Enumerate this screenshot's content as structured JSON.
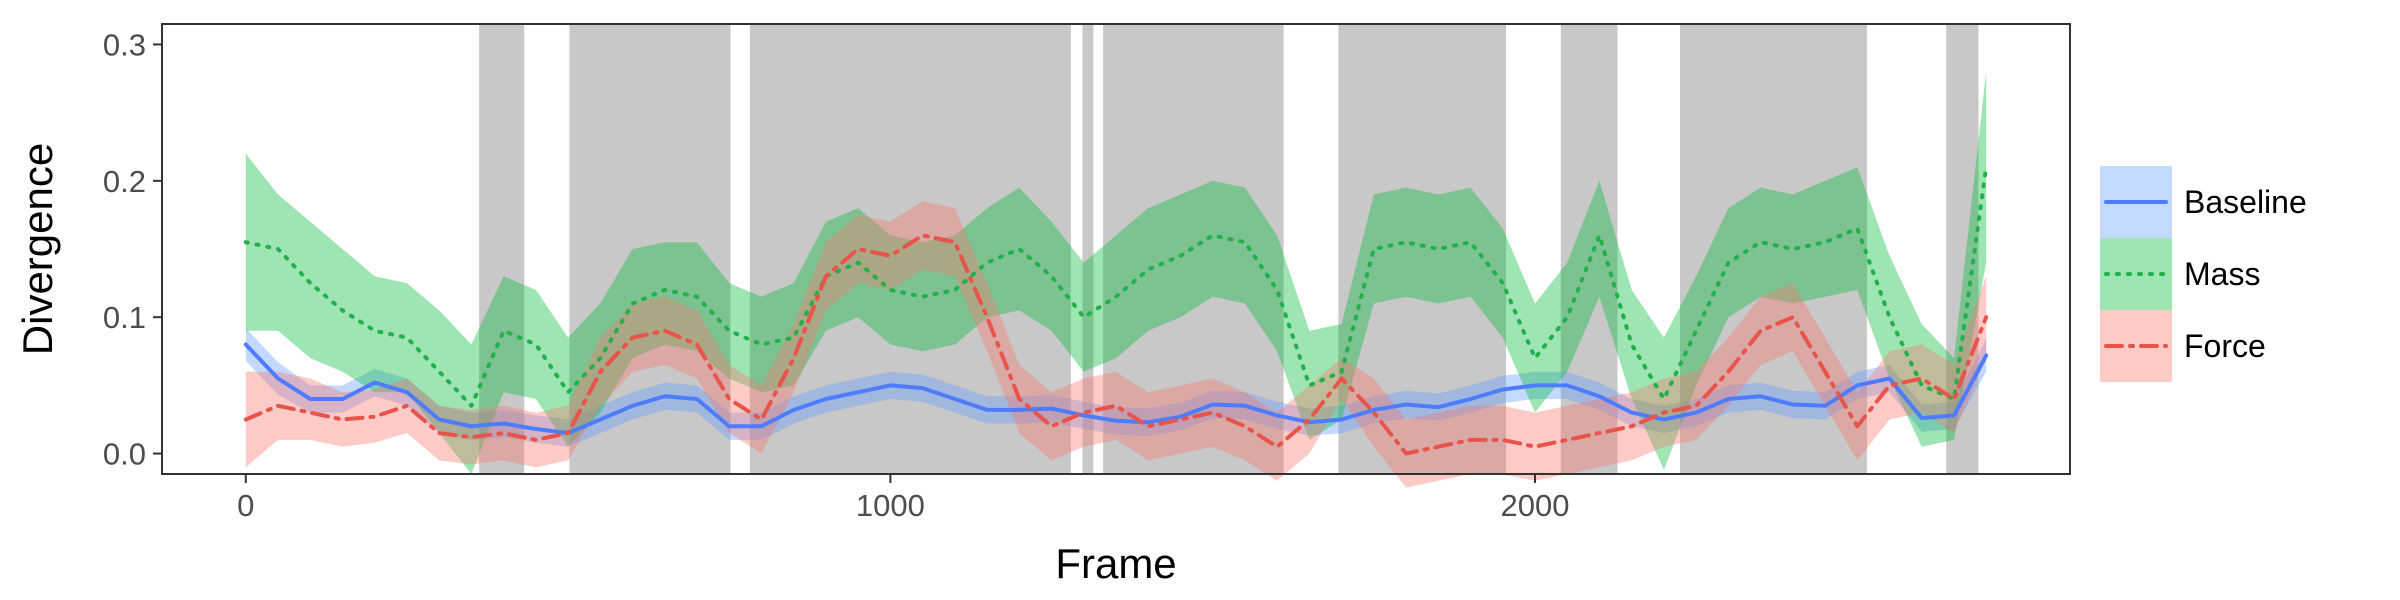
{
  "chart_data": {
    "type": "line",
    "xlabel": "Frame",
    "ylabel": "Divergence",
    "xlim": [
      -130,
      2830
    ],
    "ylim": [
      -0.015,
      0.315
    ],
    "x_ticks": [
      0,
      1000,
      2000
    ],
    "x_tick_labels": [
      "0",
      "1000",
      "2000"
    ],
    "y_ticks": [
      0.0,
      0.1,
      0.2,
      0.3
    ],
    "y_tick_labels": [
      "0.0",
      "0.1",
      "0.2",
      "0.3"
    ],
    "grid": false,
    "legend_position": "right",
    "shaded_regions": [
      [
        362,
        432
      ],
      [
        502,
        752
      ],
      [
        782,
        1280
      ],
      [
        1298,
        1315
      ],
      [
        1330,
        1610
      ],
      [
        1695,
        1955
      ],
      [
        2040,
        2128
      ],
      [
        2225,
        2515
      ],
      [
        2638,
        2688
      ]
    ],
    "shade_color": "#c8c8c8",
    "x": [
      0,
      50,
      100,
      150,
      200,
      250,
      300,
      350,
      400,
      450,
      500,
      550,
      600,
      650,
      700,
      750,
      800,
      850,
      900,
      950,
      1000,
      1050,
      1100,
      1150,
      1200,
      1250,
      1300,
      1350,
      1400,
      1450,
      1500,
      1550,
      1600,
      1650,
      1700,
      1750,
      1800,
      1850,
      1900,
      1950,
      2000,
      2050,
      2100,
      2150,
      2200,
      2250,
      2300,
      2350,
      2400,
      2450,
      2500,
      2550,
      2600,
      2650,
      2700
    ],
    "series": [
      {
        "name": "Baseline",
        "color": "#619cff",
        "line_color": "#4d7cff",
        "style": "solid",
        "values": [
          0.08,
          0.055,
          0.04,
          0.04,
          0.052,
          0.045,
          0.025,
          0.02,
          0.022,
          0.018,
          0.015,
          0.025,
          0.035,
          0.042,
          0.04,
          0.02,
          0.02,
          0.032,
          0.04,
          0.045,
          0.05,
          0.048,
          0.04,
          0.032,
          0.032,
          0.033,
          0.028,
          0.024,
          0.023,
          0.027,
          0.036,
          0.035,
          0.028,
          0.023,
          0.025,
          0.032,
          0.036,
          0.034,
          0.04,
          0.047,
          0.05,
          0.05,
          0.042,
          0.03,
          0.025,
          0.03,
          0.04,
          0.042,
          0.036,
          0.035,
          0.05,
          0.055,
          0.026,
          0.028,
          0.072
        ],
        "lower": [
          0.068,
          0.043,
          0.03,
          0.03,
          0.042,
          0.035,
          0.015,
          0.01,
          0.012,
          0.008,
          0.005,
          0.015,
          0.025,
          0.032,
          0.03,
          0.01,
          0.01,
          0.022,
          0.03,
          0.035,
          0.04,
          0.038,
          0.03,
          0.022,
          0.022,
          0.023,
          0.018,
          0.014,
          0.013,
          0.017,
          0.026,
          0.025,
          0.018,
          0.013,
          0.015,
          0.022,
          0.026,
          0.024,
          0.03,
          0.037,
          0.04,
          0.04,
          0.032,
          0.02,
          0.015,
          0.02,
          0.03,
          0.032,
          0.026,
          0.025,
          0.04,
          0.045,
          0.016,
          0.018,
          0.06
        ],
        "upper": [
          0.092,
          0.067,
          0.05,
          0.05,
          0.062,
          0.055,
          0.035,
          0.03,
          0.032,
          0.028,
          0.025,
          0.035,
          0.045,
          0.052,
          0.05,
          0.03,
          0.03,
          0.042,
          0.05,
          0.055,
          0.06,
          0.058,
          0.05,
          0.042,
          0.042,
          0.043,
          0.038,
          0.034,
          0.033,
          0.037,
          0.046,
          0.045,
          0.038,
          0.033,
          0.035,
          0.042,
          0.046,
          0.044,
          0.05,
          0.057,
          0.06,
          0.06,
          0.052,
          0.04,
          0.035,
          0.04,
          0.05,
          0.052,
          0.046,
          0.045,
          0.06,
          0.065,
          0.036,
          0.038,
          0.084
        ]
      },
      {
        "name": "Mass",
        "color": "#00ba38",
        "line_color": "#22b04a",
        "style": "dotted",
        "values": [
          0.155,
          0.15,
          0.125,
          0.105,
          0.09,
          0.085,
          0.06,
          0.035,
          0.09,
          0.08,
          0.045,
          0.07,
          0.11,
          0.12,
          0.115,
          0.09,
          0.08,
          0.085,
          0.13,
          0.14,
          0.12,
          0.115,
          0.12,
          0.14,
          0.15,
          0.13,
          0.1,
          0.115,
          0.135,
          0.145,
          0.16,
          0.155,
          0.12,
          0.05,
          0.06,
          0.15,
          0.155,
          0.15,
          0.155,
          0.125,
          0.07,
          0.1,
          0.16,
          0.08,
          0.04,
          0.09,
          0.14,
          0.155,
          0.15,
          0.155,
          0.165,
          0.1,
          0.05,
          0.04,
          0.21
        ],
        "lower": [
          0.09,
          0.09,
          0.07,
          0.06,
          0.045,
          0.045,
          0.015,
          -0.015,
          0.045,
          0.04,
          0.005,
          0.03,
          0.07,
          0.08,
          0.075,
          0.055,
          0.045,
          0.05,
          0.09,
          0.1,
          0.08,
          0.075,
          0.08,
          0.1,
          0.105,
          0.09,
          0.06,
          0.07,
          0.09,
          0.1,
          0.115,
          0.11,
          0.075,
          0.01,
          0.025,
          0.11,
          0.115,
          0.11,
          0.115,
          0.085,
          0.03,
          0.06,
          0.115,
          0.04,
          -0.012,
          0.05,
          0.1,
          0.115,
          0.11,
          0.115,
          0.12,
          0.055,
          0.005,
          0.01,
          0.14
        ],
        "upper": [
          0.22,
          0.19,
          0.17,
          0.15,
          0.13,
          0.125,
          0.105,
          0.08,
          0.13,
          0.12,
          0.085,
          0.11,
          0.15,
          0.155,
          0.155,
          0.125,
          0.115,
          0.125,
          0.17,
          0.18,
          0.16,
          0.155,
          0.16,
          0.18,
          0.195,
          0.17,
          0.14,
          0.16,
          0.18,
          0.19,
          0.2,
          0.195,
          0.16,
          0.09,
          0.095,
          0.19,
          0.195,
          0.19,
          0.195,
          0.165,
          0.11,
          0.14,
          0.2,
          0.12,
          0.085,
          0.13,
          0.18,
          0.195,
          0.19,
          0.2,
          0.21,
          0.145,
          0.095,
          0.07,
          0.28
        ]
      },
      {
        "name": "Force",
        "color": "#f8766d",
        "line_color": "#e8534a",
        "style": "dotdash",
        "values": [
          0.025,
          0.035,
          0.03,
          0.025,
          0.027,
          0.035,
          0.015,
          0.012,
          0.015,
          0.01,
          0.015,
          0.06,
          0.085,
          0.09,
          0.08,
          0.04,
          0.025,
          0.07,
          0.13,
          0.15,
          0.145,
          0.16,
          0.155,
          0.1,
          0.04,
          0.02,
          0.03,
          0.035,
          0.02,
          0.025,
          0.03,
          0.02,
          0.005,
          0.025,
          0.055,
          0.03,
          0.0,
          0.005,
          0.01,
          0.01,
          0.005,
          0.01,
          0.015,
          0.02,
          0.03,
          0.035,
          0.06,
          0.09,
          0.1,
          0.06,
          0.02,
          0.05,
          0.055,
          0.04,
          0.1
        ],
        "lower": [
          -0.01,
          0.01,
          0.01,
          0.005,
          0.008,
          0.015,
          -0.005,
          -0.008,
          -0.005,
          -0.01,
          -0.005,
          0.035,
          0.06,
          0.065,
          0.055,
          0.015,
          0.0,
          0.045,
          0.105,
          0.125,
          0.12,
          0.135,
          0.13,
          0.075,
          0.015,
          -0.005,
          0.005,
          0.01,
          -0.005,
          0.0,
          0.005,
          -0.005,
          -0.02,
          0.0,
          0.04,
          0.005,
          -0.025,
          -0.02,
          -0.015,
          -0.015,
          -0.02,
          -0.015,
          -0.01,
          -0.005,
          0.005,
          0.01,
          0.035,
          0.065,
          0.075,
          0.035,
          -0.005,
          0.025,
          0.03,
          0.015,
          0.07
        ],
        "upper": [
          0.06,
          0.06,
          0.055,
          0.045,
          0.047,
          0.055,
          0.035,
          0.032,
          0.035,
          0.03,
          0.035,
          0.085,
          0.11,
          0.115,
          0.105,
          0.065,
          0.05,
          0.095,
          0.155,
          0.175,
          0.17,
          0.185,
          0.18,
          0.125,
          0.065,
          0.045,
          0.055,
          0.06,
          0.045,
          0.05,
          0.055,
          0.045,
          0.03,
          0.05,
          0.07,
          0.055,
          0.025,
          0.03,
          0.035,
          0.035,
          0.03,
          0.035,
          0.04,
          0.045,
          0.055,
          0.06,
          0.085,
          0.115,
          0.125,
          0.085,
          0.045,
          0.075,
          0.08,
          0.065,
          0.13
        ]
      }
    ]
  }
}
